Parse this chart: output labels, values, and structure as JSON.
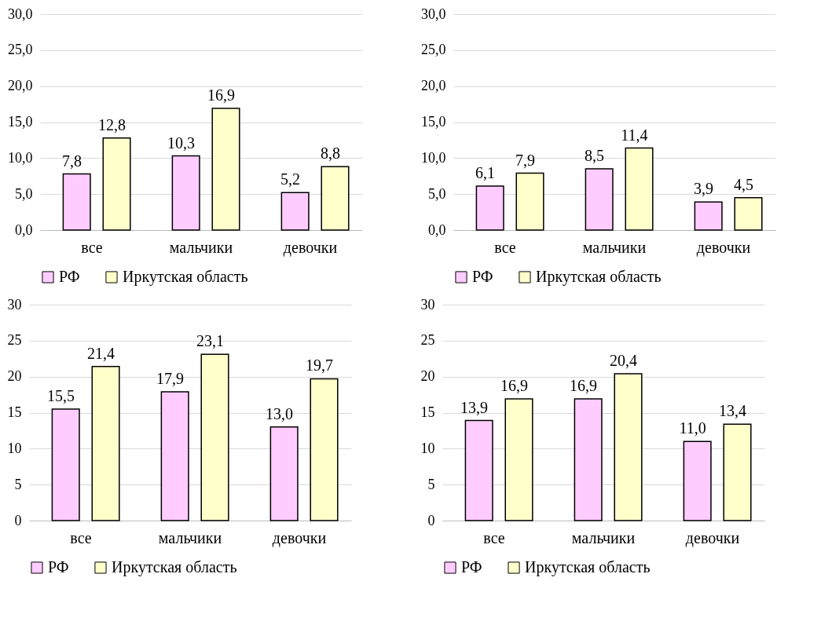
{
  "chart_data": [
    {
      "type": "bar",
      "categories": [
        "все",
        "мальчики",
        "девочки"
      ],
      "ylim": [
        0,
        30
      ],
      "yticks": [
        {
          "value": 0,
          "label": "0,0"
        },
        {
          "value": 5,
          "label": "5,0"
        },
        {
          "value": 10,
          "label": "10,0"
        },
        {
          "value": 15,
          "label": "15,0"
        },
        {
          "value": 20,
          "label": "20,0"
        },
        {
          "value": 25,
          "label": "25,0"
        },
        {
          "value": 30,
          "label": "30,0"
        }
      ],
      "grid": "y",
      "legend": "bottom",
      "series": [
        {
          "name": "РФ",
          "color": "#ffccff",
          "values": [
            7.8,
            10.3,
            5.2
          ],
          "value_labels": [
            "7,8",
            "10,3",
            "5,2"
          ]
        },
        {
          "name": "Иркутская область",
          "color": "#ffffcc",
          "values": [
            12.8,
            16.9,
            8.8
          ],
          "value_labels": [
            "12,8",
            "16,9",
            "8,8"
          ]
        }
      ]
    },
    {
      "type": "bar",
      "categories": [
        "все",
        "мальчики",
        "девочки"
      ],
      "ylim": [
        0,
        30
      ],
      "yticks": [
        {
          "value": 0,
          "label": "0,0"
        },
        {
          "value": 5,
          "label": "5,0"
        },
        {
          "value": 10,
          "label": "10,0"
        },
        {
          "value": 15,
          "label": "15,0"
        },
        {
          "value": 20,
          "label": "20,0"
        },
        {
          "value": 25,
          "label": "25,0"
        },
        {
          "value": 30,
          "label": "30,0"
        }
      ],
      "grid": "y",
      "legend": "bottom",
      "series": [
        {
          "name": "РФ",
          "color": "#ffccff",
          "values": [
            6.1,
            8.5,
            3.9
          ],
          "value_labels": [
            "6,1",
            "8,5",
            "3,9"
          ]
        },
        {
          "name": "Иркутская область",
          "color": "#ffffcc",
          "values": [
            7.9,
            11.4,
            4.5
          ],
          "value_labels": [
            "7,9",
            "11,4",
            "4,5"
          ]
        }
      ]
    },
    {
      "type": "bar",
      "categories": [
        "все",
        "мальчики",
        "девочки"
      ],
      "ylim": [
        0,
        30
      ],
      "yticks": [
        0,
        5,
        10,
        15,
        20,
        25,
        30
      ],
      "grid": "y",
      "legend": "bottom",
      "series": [
        {
          "name": "РФ",
          "color": "#ffccff",
          "values": [
            15.5,
            17.9,
            13.0
          ],
          "value_labels": [
            "15,5",
            "17,9",
            "13,0"
          ]
        },
        {
          "name": "Иркутская область",
          "color": "#ffffcc",
          "values": [
            21.4,
            23.1,
            19.7
          ],
          "value_labels": [
            "21,4",
            "23,1",
            "19,7"
          ]
        }
      ]
    },
    {
      "type": "bar",
      "categories": [
        "все",
        "мальчики",
        "девочки"
      ],
      "ylim": [
        0,
        30
      ],
      "yticks": [
        0,
        5,
        10,
        15,
        20,
        25,
        30
      ],
      "grid": "y",
      "legend": "bottom",
      "series": [
        {
          "name": "РФ",
          "color": "#ffccff",
          "values": [
            13.9,
            16.9,
            11.0
          ],
          "value_labels": [
            "13,9",
            "16,9",
            "11,0"
          ]
        },
        {
          "name": "Иркутская область",
          "color": "#ffffcc",
          "values": [
            16.9,
            20.4,
            13.4
          ],
          "value_labels": [
            "16,9",
            "20,4",
            "13,4"
          ]
        }
      ]
    }
  ]
}
